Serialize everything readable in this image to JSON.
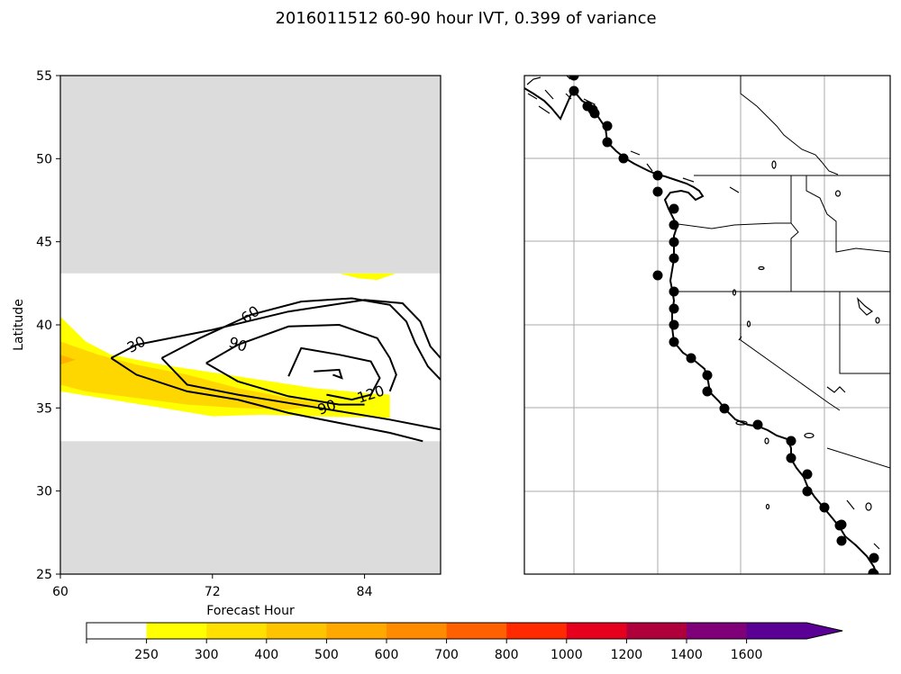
{
  "chart_data": [
    {
      "type": "contour",
      "title": "2016011512 60-90 hour IVT, 0.399 of variance",
      "xlabel": "Forecast Hour",
      "ylabel": "Latitude",
      "xlim": [
        60,
        90
      ],
      "ylim": [
        25,
        55
      ],
      "xticks": [
        "60",
        "72",
        "84"
      ],
      "yticks": [
        "25",
        "30",
        "35",
        "40",
        "45",
        "50",
        "55"
      ],
      "masked_regions": [
        {
          "name": "upper-mask",
          "lat_range": [
            43.1,
            55
          ],
          "color": "#dcdcdc"
        },
        {
          "name": "lower-mask",
          "lat_range": [
            25,
            33.0
          ],
          "color": "#dcdcdc"
        }
      ],
      "filled_contours": [
        {
          "level": 250,
          "color": "#ffff00",
          "points": [
            [
              60,
              40.5
            ],
            [
              62,
              39
            ],
            [
              64,
              38.2
            ],
            [
              68,
              37.6
            ],
            [
              74,
              36.9
            ],
            [
              80,
              36.2
            ],
            [
              84,
              35.9
            ],
            [
              86,
              35.8
            ],
            [
              86,
              34.4
            ],
            [
              80,
              34.5
            ],
            [
              76,
              34.6
            ],
            [
              72,
              34.5
            ],
            [
              68,
              35
            ],
            [
              64,
              35.5
            ],
            [
              60,
              36
            ]
          ]
        },
        {
          "level": 300,
          "color": "#ffd700",
          "points": [
            [
              60,
              39
            ],
            [
              63,
              38.2
            ],
            [
              66,
              37.6
            ],
            [
              70,
              37
            ],
            [
              74,
              36.2
            ],
            [
              78,
              35.6
            ],
            [
              81,
              35.2
            ],
            [
              78,
              34.9
            ],
            [
              74,
              35
            ],
            [
              70,
              35.2
            ],
            [
              66,
              35.6
            ],
            [
              62,
              36
            ],
            [
              60,
              36.4
            ]
          ]
        },
        {
          "level": 400,
          "color": "#ffb300",
          "points": [
            [
              60,
              38.2
            ],
            [
              61.2,
              37.9
            ],
            [
              60,
              37.6
            ]
          ]
        },
        {
          "level": 250,
          "color": "#ffff00",
          "points": [
            [
              82,
              43.1
            ],
            [
              83.5,
              42.8
            ],
            [
              85,
              42.7
            ],
            [
              86.5,
              43.1
            ]
          ]
        }
      ],
      "contour_lines": [
        {
          "level": 30,
          "label": "30",
          "points": [
            [
              64,
              38
            ],
            [
              66,
              38.8
            ],
            [
              72,
              39.7
            ],
            [
              78,
              40.8
            ],
            [
              84,
              41.5
            ],
            [
              87,
              41.3
            ],
            [
              88.4,
              40.2
            ],
            [
              89.2,
              38.7
            ],
            [
              90,
              38
            ]
          ]
        },
        {
          "level": 30,
          "label": "",
          "points": [
            [
              64,
              38
            ],
            [
              66,
              37
            ],
            [
              70,
              36
            ],
            [
              74,
              35.5
            ],
            [
              78,
              34.7
            ],
            [
              82,
              34.1
            ],
            [
              86,
              33.5
            ],
            [
              88.6,
              33
            ]
          ]
        },
        {
          "level": 60,
          "label": "60",
          "points": [
            [
              68,
              38
            ],
            [
              71,
              39.2
            ],
            [
              75,
              40.6
            ],
            [
              79,
              41.4
            ],
            [
              83,
              41.6
            ],
            [
              86,
              41.2
            ],
            [
              87.3,
              40.2
            ],
            [
              88,
              38.9
            ],
            [
              89,
              37.5
            ],
            [
              90,
              36.7
            ]
          ]
        },
        {
          "level": 60,
          "label": "",
          "points": [
            [
              68,
              38
            ],
            [
              70,
              36.4
            ],
            [
              74,
              35.8
            ],
            [
              78,
              35.3
            ],
            [
              82,
              34.8
            ],
            [
              86,
              34.3
            ],
            [
              90,
              33.7
            ]
          ]
        },
        {
          "level": 90,
          "label": "90",
          "points": [
            [
              71.5,
              37.7
            ],
            [
              74,
              38.8
            ],
            [
              78,
              39.9
            ],
            [
              82,
              40
            ],
            [
              85,
              39.2
            ],
            [
              86,
              38
            ],
            [
              86.5,
              37
            ],
            [
              86,
              36
            ]
          ]
        },
        {
          "level": 90,
          "label": "",
          "points": [
            [
              71.5,
              37.7
            ],
            [
              74,
              36.6
            ],
            [
              78,
              35.7
            ],
            [
              82,
              35.2
            ],
            [
              84,
              35.2
            ]
          ]
        },
        {
          "level": 120,
          "label": "120",
          "points": [
            [
              78,
              36.9
            ],
            [
              79,
              38.6
            ],
            [
              82,
              38.2
            ],
            [
              84.5,
              37.8
            ],
            [
              85.2,
              36.8
            ],
            [
              84.5,
              35.8
            ],
            [
              83,
              35.5
            ],
            [
              81,
              35.8
            ]
          ]
        },
        {
          "level": 150,
          "label": "",
          "points": [
            [
              80,
              37.2
            ],
            [
              82,
              37.3
            ],
            [
              82.2,
              36.8
            ],
            [
              81.5,
              37
            ]
          ]
        }
      ]
    },
    {
      "type": "map",
      "stations": 35,
      "land_color": "#ffffff",
      "coast_color": "#000000"
    }
  ],
  "colorbar": {
    "labels": [
      "250",
      "300",
      "400",
      "500",
      "600",
      "700",
      "800",
      "1000",
      "1200",
      "1400",
      "1600"
    ],
    "colors": [
      "#ffffff",
      "#ffff00",
      "#ffe000",
      "#ffc400",
      "#ffa800",
      "#ff8c00",
      "#ff6000",
      "#ff2a00",
      "#e6001e",
      "#b0003c",
      "#80007a",
      "#5a0094"
    ],
    "extend": "max"
  }
}
